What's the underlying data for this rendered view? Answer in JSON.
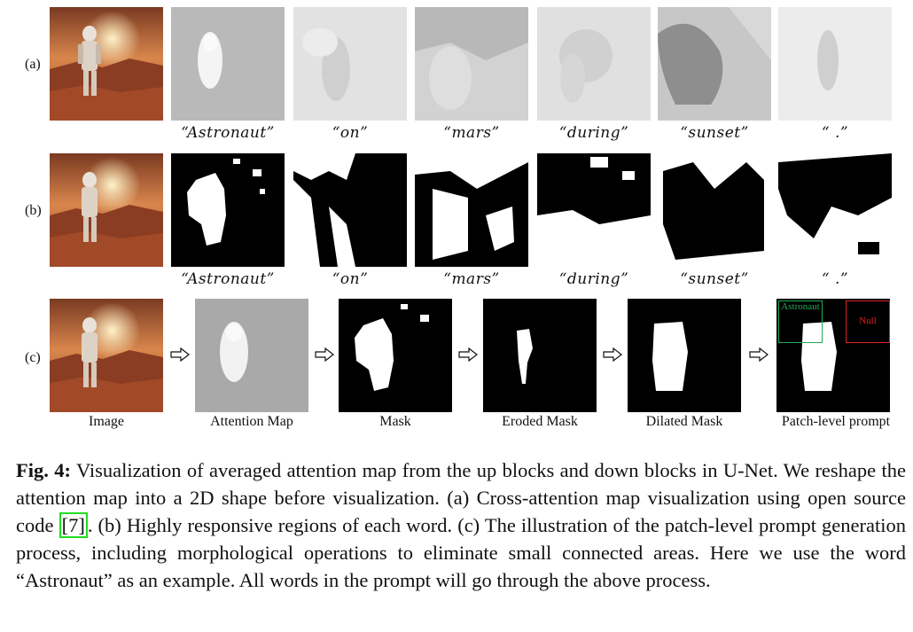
{
  "figure": {
    "row_labels": [
      "(a)",
      "(b)",
      "(c)"
    ],
    "words": [
      "“Astronaut”",
      "“on”",
      "“mars”",
      "“during”",
      "“sunset”",
      "“ .”"
    ],
    "pipeline_labels": [
      "Image",
      "Attention Map",
      "Mask",
      "Eroded Mask",
      "Dilated Mask",
      "Patch-level prompt"
    ],
    "patch_boxes": {
      "astronaut": "Astronaut",
      "null": "Null"
    },
    "colors": {
      "astronaut_box": "#22aa55",
      "null_box": "#dd2222",
      "cite_box": "#22dd22"
    }
  },
  "caption": {
    "label": "Fig. 4:",
    "text_before_cite": " Visualization of averaged attention map from the up blocks and down blocks in U-Net. We reshape the attention map into a 2D shape before visualization. (a) Cross-attention map visualization using open source code ",
    "cite": "[7]",
    "text_after_cite": ". (b) Highly responsive regions of each word. (c) The illustration of the patch-level prompt generation process, including morphological operations to eliminate small connected areas. Here we use the word “Astronaut” as an example. All words in the prompt will go through the above process."
  }
}
